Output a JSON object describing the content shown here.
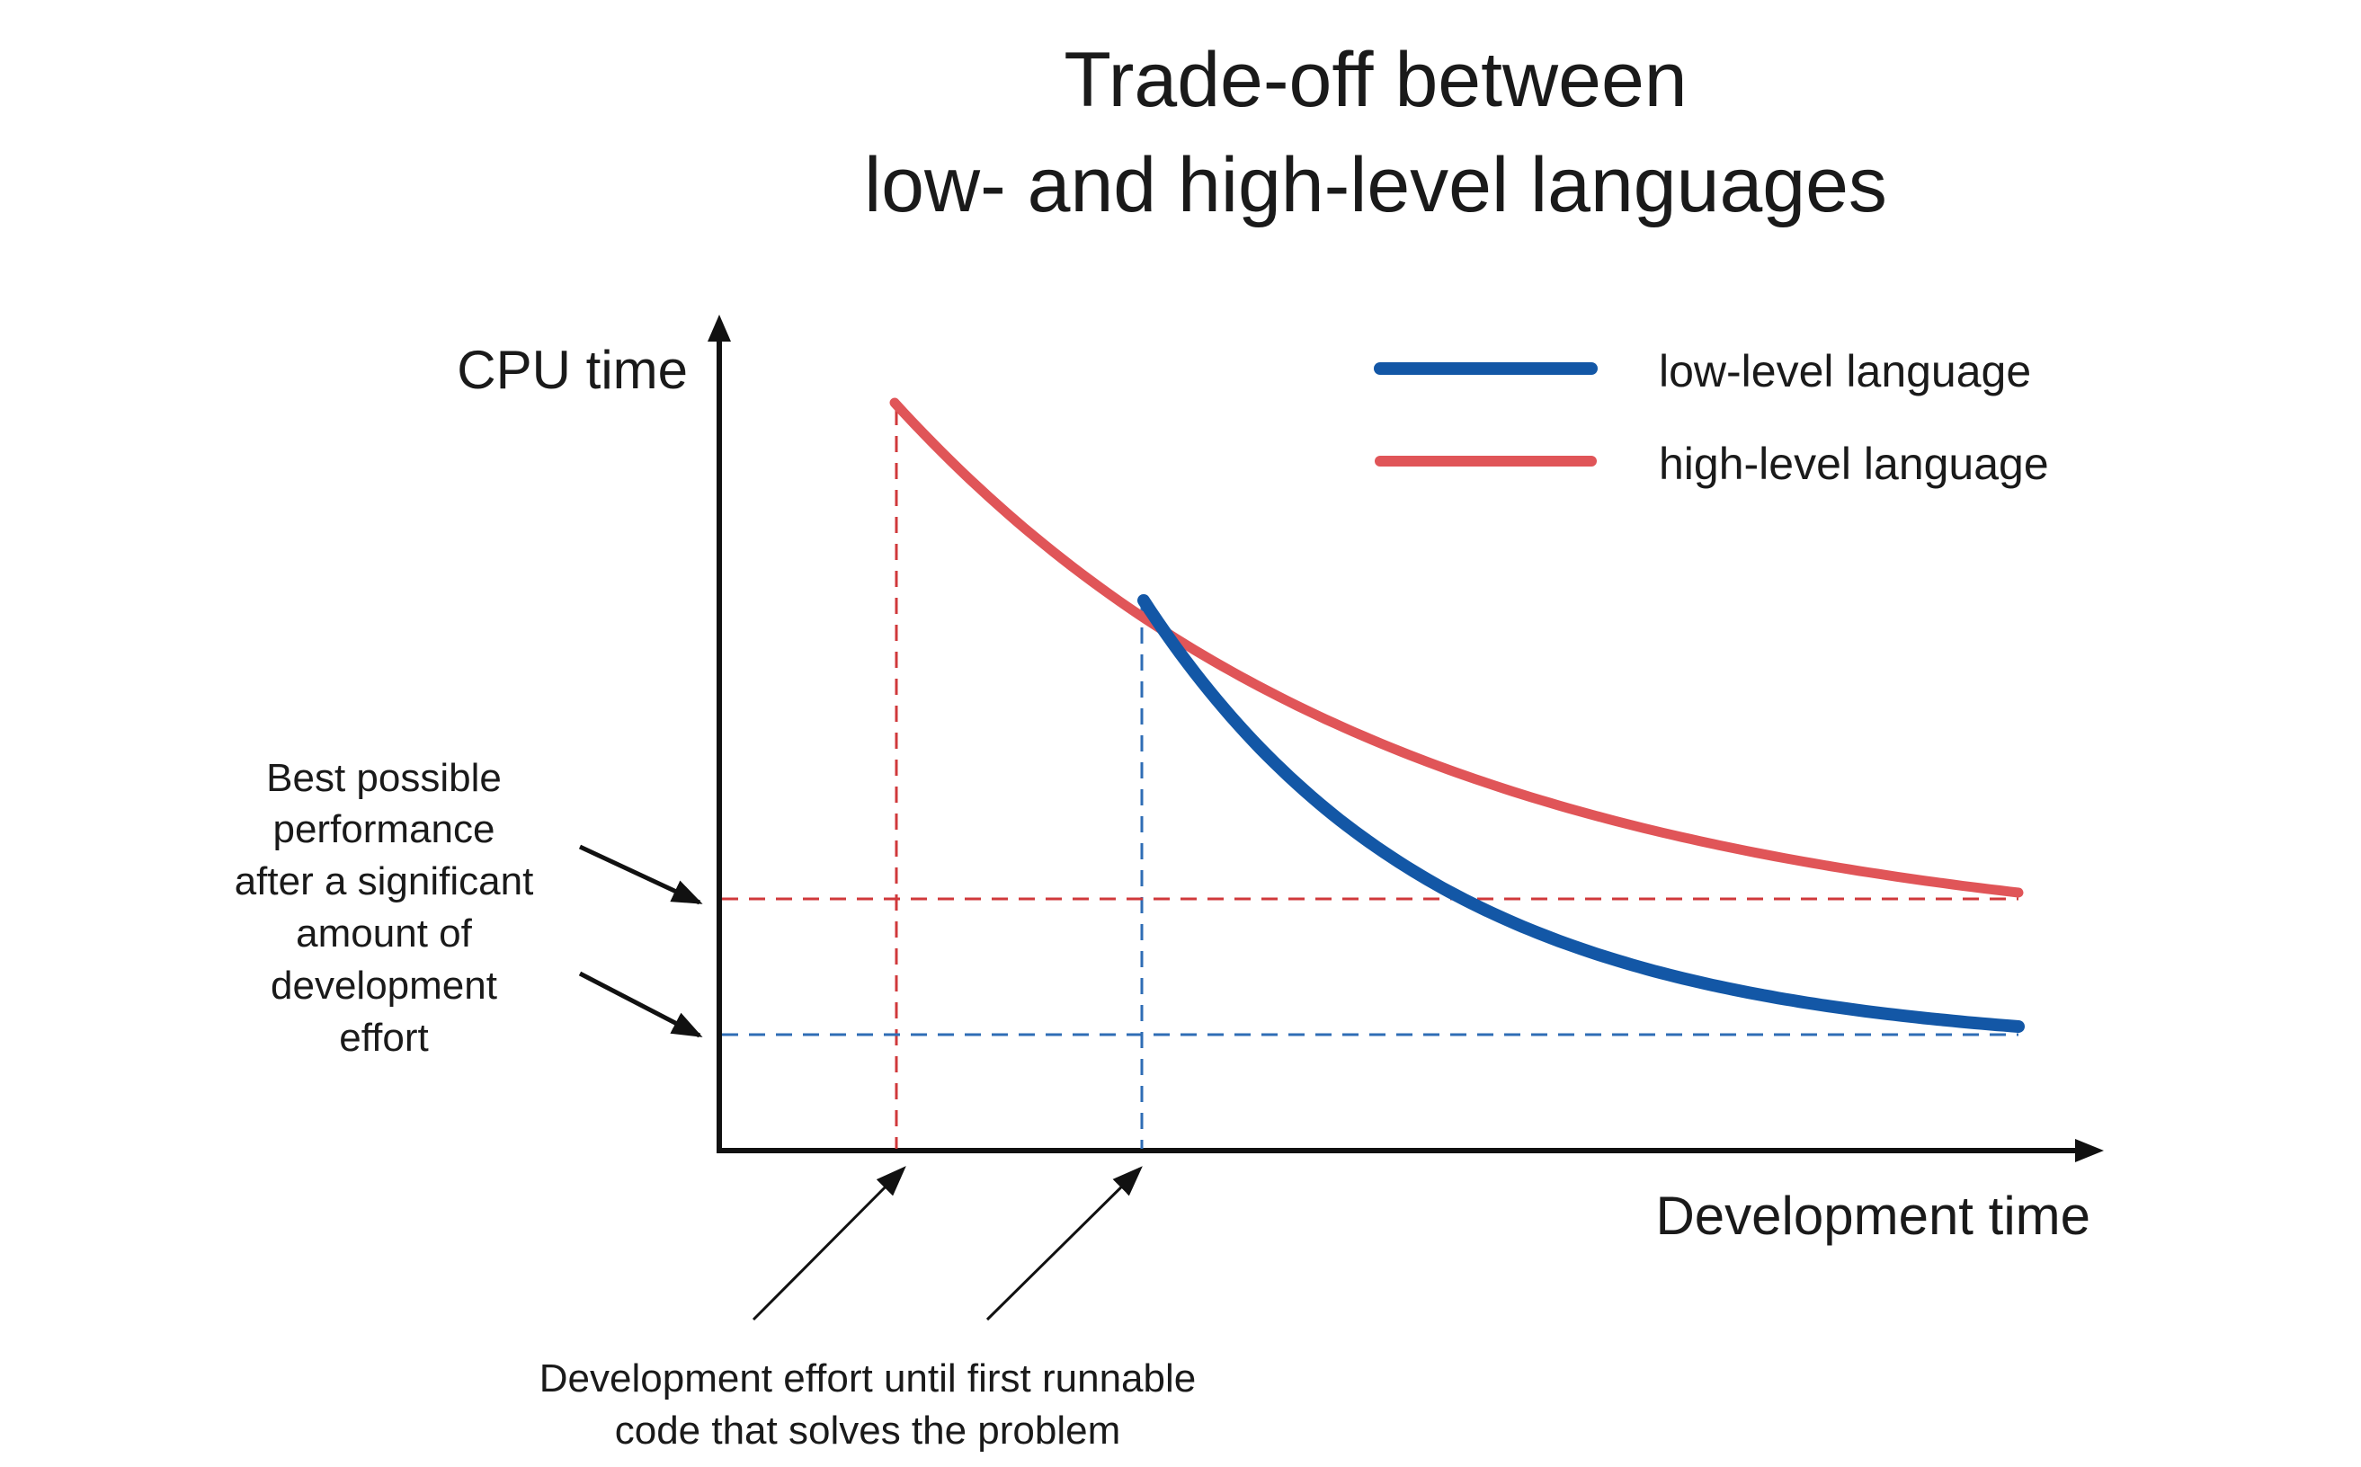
{
  "title": {
    "line1": "Trade-off between",
    "line2": "low- and high-level languages"
  },
  "axes": {
    "y_label": "CPU time",
    "x_label": "Development time"
  },
  "legend": {
    "items": [
      {
        "label": "low-level language",
        "color": "#1357a6"
      },
      {
        "label": "high-level language",
        "color": "#e05558"
      }
    ]
  },
  "annotations": {
    "best_performance": [
      "Best possible",
      "performance",
      "after a significant",
      "amount of",
      "development",
      "effort"
    ],
    "first_runnable": [
      "Development effort until first runnable",
      "code that solves the problem"
    ]
  },
  "colors": {
    "low_level": "#1357a6",
    "high_level": "#e05558",
    "low_level_guide": "#2f6db5",
    "high_level_guide": "#d0393b",
    "axis": "#111111"
  }
}
